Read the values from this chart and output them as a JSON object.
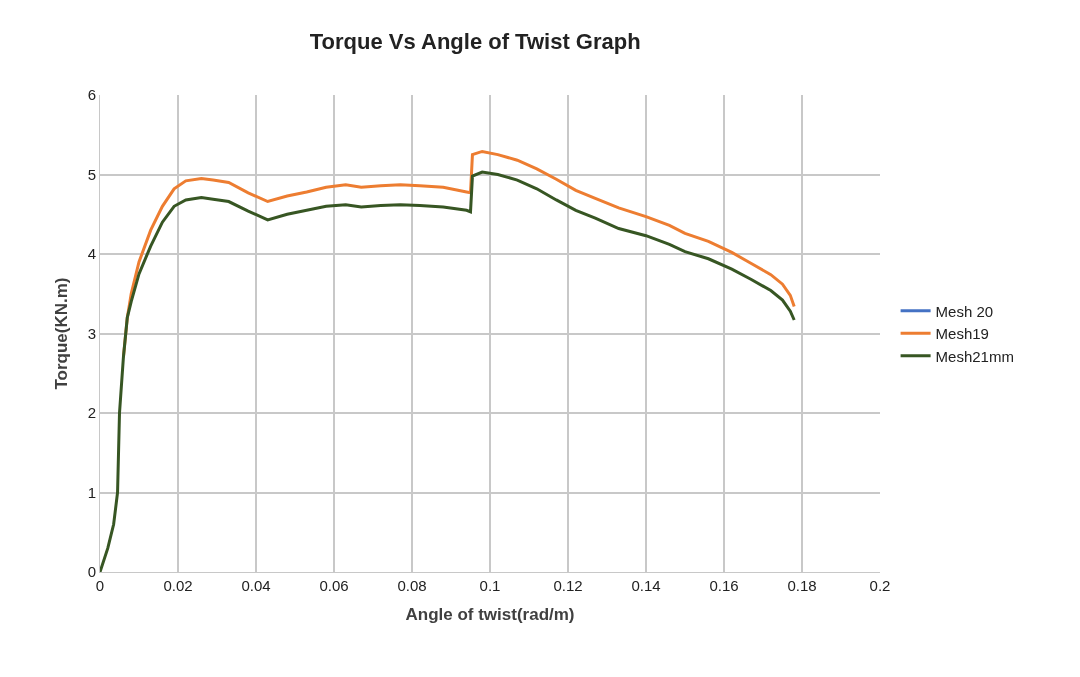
{
  "chart_data": {
    "type": "line",
    "title": "Torque Vs Angle of Twist Graph",
    "xlabel": "Angle of twist(rad/m)",
    "ylabel": "Torque(KN.m)",
    "xlim": [
      0,
      0.2
    ],
    "xticks": [
      0,
      0.02,
      0.04,
      0.06,
      0.08,
      0.1,
      0.12,
      0.14,
      0.16,
      0.18,
      0.2
    ],
    "ylim": [
      0,
      6
    ],
    "yticks": [
      0,
      1,
      2,
      3,
      4,
      5,
      6
    ],
    "grid": true,
    "legend": "right",
    "marker": "none",
    "line_style": "solid",
    "series": [
      {
        "name": "Mesh 20",
        "color": "#4472c4"
      },
      {
        "name": "Mesh19",
        "color": "#ed7d31",
        "x": [
          0.006,
          0.007,
          0.008,
          0.01,
          0.013,
          0.016,
          0.019,
          0.022,
          0.026,
          0.029,
          0.033,
          0.038,
          0.043,
          0.048,
          0.053,
          0.058,
          0.063,
          0.067,
          0.072,
          0.077,
          0.082,
          0.088,
          0.094,
          0.095,
          0.0955,
          0.098,
          0.102,
          0.107,
          0.112,
          0.117,
          0.122,
          0.127,
          0.133,
          0.14,
          0.146,
          0.15,
          0.156,
          0.162,
          0.167,
          0.172,
          0.175,
          0.177,
          0.178
        ],
        "values": [
          2.7,
          3.2,
          3.5,
          3.9,
          4.3,
          4.6,
          4.82,
          4.92,
          4.95,
          4.93,
          4.9,
          4.77,
          4.66,
          4.73,
          4.78,
          4.84,
          4.87,
          4.84,
          4.86,
          4.87,
          4.86,
          4.84,
          4.78,
          4.77,
          5.25,
          5.29,
          5.25,
          5.18,
          5.07,
          4.94,
          4.8,
          4.7,
          4.58,
          4.47,
          4.36,
          4.26,
          4.16,
          4.02,
          3.88,
          3.74,
          3.62,
          3.48,
          3.34
        ]
      },
      {
        "name": "Mesh21mm",
        "color": "#375623",
        "x": [
          0,
          0.002,
          0.0035,
          0.0045,
          0.005,
          0.006,
          0.007,
          0.008,
          0.01,
          0.013,
          0.016,
          0.019,
          0.022,
          0.026,
          0.029,
          0.033,
          0.038,
          0.043,
          0.048,
          0.053,
          0.058,
          0.063,
          0.067,
          0.072,
          0.077,
          0.082,
          0.088,
          0.094,
          0.095,
          0.0955,
          0.098,
          0.102,
          0.107,
          0.112,
          0.117,
          0.122,
          0.127,
          0.133,
          0.14,
          0.146,
          0.15,
          0.156,
          0.162,
          0.167,
          0.172,
          0.175,
          0.177,
          0.178
        ],
        "values": [
          0,
          0.3,
          0.6,
          1.0,
          2.0,
          2.7,
          3.2,
          3.4,
          3.75,
          4.1,
          4.4,
          4.6,
          4.68,
          4.71,
          4.69,
          4.66,
          4.54,
          4.43,
          4.5,
          4.55,
          4.6,
          4.62,
          4.59,
          4.61,
          4.62,
          4.61,
          4.59,
          4.55,
          4.53,
          4.98,
          5.03,
          5.0,
          4.93,
          4.82,
          4.68,
          4.55,
          4.45,
          4.32,
          4.23,
          4.12,
          4.03,
          3.94,
          3.81,
          3.68,
          3.54,
          3.42,
          3.28,
          3.17
        ]
      }
    ]
  }
}
